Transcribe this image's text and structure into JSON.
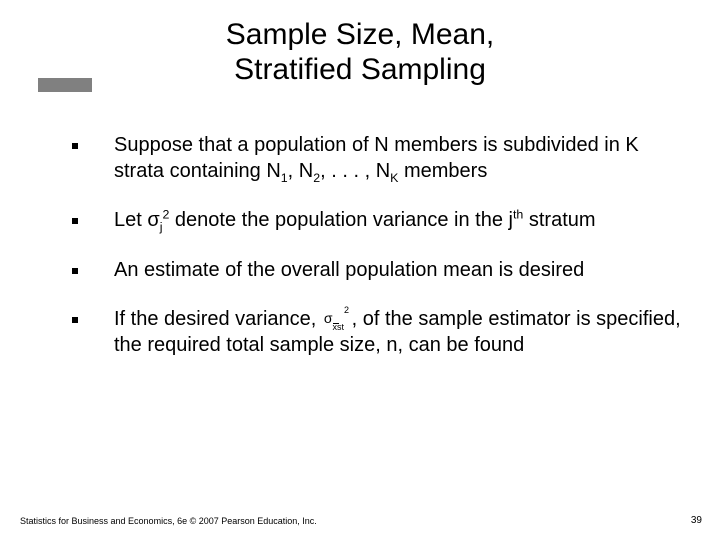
{
  "title_line1": "Sample Size, Mean,",
  "title_line2": "Stratified Sampling",
  "bullets": {
    "b1_part1": "Suppose that a population of N members is subdivided in K strata containing N",
    "b1_sub1": "1",
    "b1_part2": ", N",
    "b1_sub2": "2",
    "b1_part3": ", . . . , N",
    "b1_sub3": "K",
    "b1_part4": " members",
    "b2_part1": "Let σ",
    "b2_sub1": "j",
    "b2_sup1": "2",
    "b2_part2": " denote the population variance in the j",
    "b2_sup2": "th",
    "b2_part3": " stratum",
    "b3": "An estimate of the overall population mean is desired",
    "b4_part1": "If the desired variance, ",
    "b4_part2": " , of the sample estimator is specified, the required total sample size, n, can be found"
  },
  "formula": {
    "sigma": "σ",
    "sup": "2",
    "sub_x": "x",
    "sub_st": "st"
  },
  "footer": "Statistics for Business and Economics, 6e © 2007 Pearson Education, Inc.",
  "page_number": "39",
  "colors": {
    "accent_bar": "#808080",
    "text": "#000000",
    "background": "#ffffff"
  }
}
